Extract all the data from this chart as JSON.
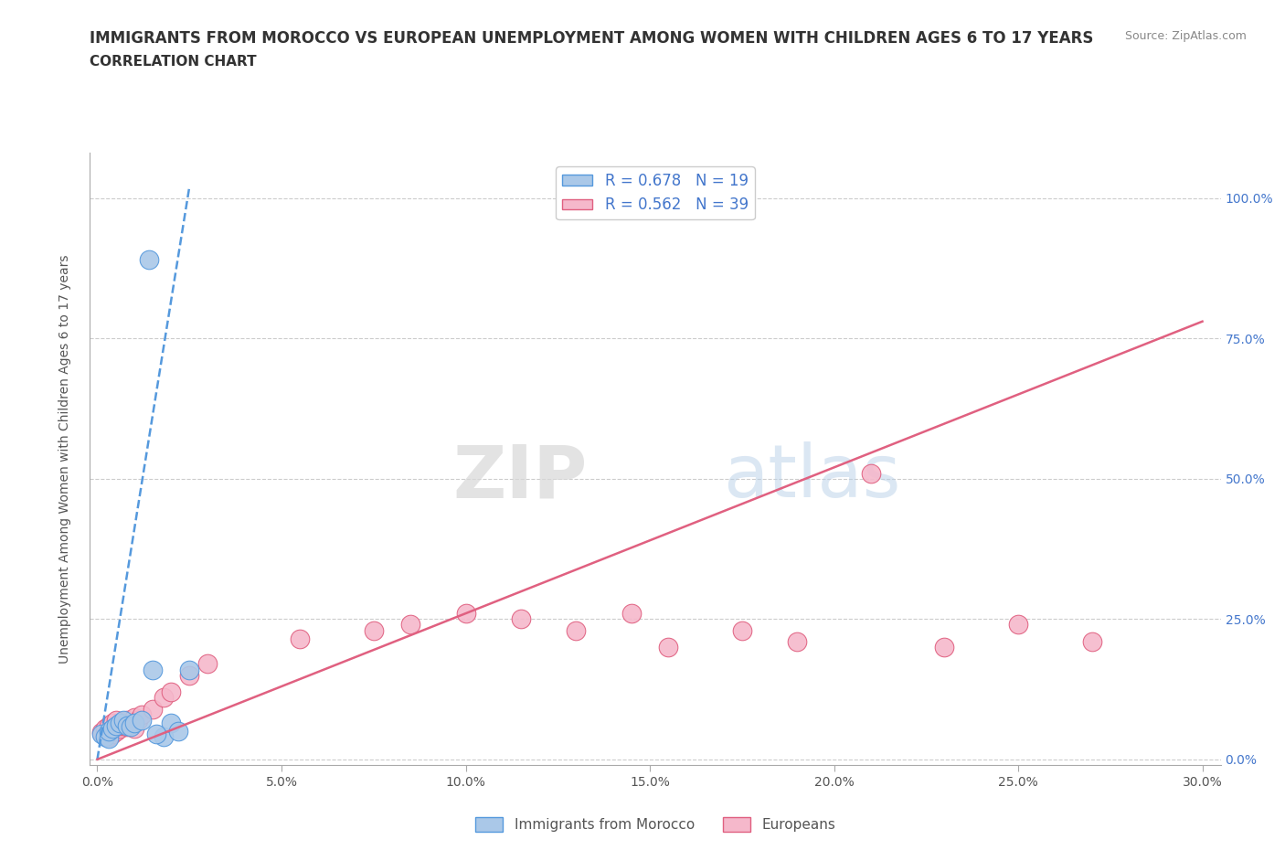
{
  "title": "IMMIGRANTS FROM MOROCCO VS EUROPEAN UNEMPLOYMENT AMONG WOMEN WITH CHILDREN AGES 6 TO 17 YEARS",
  "subtitle": "CORRELATION CHART",
  "source": "Source: ZipAtlas.com",
  "xlabel_ticks": [
    "0.0%",
    "5.0%",
    "10.0%",
    "15.0%",
    "20.0%",
    "25.0%",
    "30.0%"
  ],
  "xlabel_vals": [
    0.0,
    0.05,
    0.1,
    0.15,
    0.2,
    0.25,
    0.3
  ],
  "ylabel_ticks": [
    "0.0%",
    "25.0%",
    "50.0%",
    "75.0%",
    "100.0%"
  ],
  "ylabel_vals": [
    0.0,
    0.25,
    0.5,
    0.75,
    1.0
  ],
  "xlim": [
    -0.002,
    0.305
  ],
  "ylim": [
    -0.01,
    1.08
  ],
  "morocco_R": 0.678,
  "morocco_N": 19,
  "european_R": 0.562,
  "european_N": 39,
  "morocco_color": "#aac8e8",
  "european_color": "#f5b8cb",
  "morocco_line_color": "#5599dd",
  "european_line_color": "#e06080",
  "legend_text_color": "#4477cc",
  "watermark_zip": "ZIP",
  "watermark_atlas": "atlas",
  "morocco_x": [
    0.001,
    0.002,
    0.003,
    0.003,
    0.004,
    0.005,
    0.006,
    0.007,
    0.008,
    0.009,
    0.01,
    0.012,
    0.015,
    0.018,
    0.02,
    0.025,
    0.014,
    0.022,
    0.016
  ],
  "morocco_y": [
    0.045,
    0.04,
    0.038,
    0.05,
    0.055,
    0.06,
    0.065,
    0.07,
    0.06,
    0.058,
    0.065,
    0.07,
    0.16,
    0.04,
    0.065,
    0.16,
    0.89,
    0.05,
    0.045
  ],
  "european_x": [
    0.001,
    0.002,
    0.002,
    0.003,
    0.003,
    0.004,
    0.004,
    0.005,
    0.005,
    0.006,
    0.006,
    0.007,
    0.007,
    0.008,
    0.008,
    0.009,
    0.01,
    0.01,
    0.011,
    0.012,
    0.015,
    0.018,
    0.02,
    0.025,
    0.03,
    0.055,
    0.075,
    0.085,
    0.1,
    0.115,
    0.13,
    0.145,
    0.155,
    0.175,
    0.19,
    0.21,
    0.23,
    0.25,
    0.27
  ],
  "european_y": [
    0.048,
    0.042,
    0.055,
    0.04,
    0.06,
    0.045,
    0.065,
    0.05,
    0.07,
    0.055,
    0.06,
    0.06,
    0.065,
    0.058,
    0.07,
    0.063,
    0.055,
    0.075,
    0.07,
    0.08,
    0.09,
    0.11,
    0.12,
    0.15,
    0.17,
    0.215,
    0.23,
    0.24,
    0.26,
    0.25,
    0.23,
    0.26,
    0.2,
    0.23,
    0.21,
    0.51,
    0.2,
    0.24,
    0.21
  ],
  "morocco_line_x": [
    0.0,
    0.025
  ],
  "morocco_line_y": [
    0.0,
    1.02
  ],
  "european_line_x": [
    0.0,
    0.3
  ],
  "european_line_y": [
    0.0,
    0.78
  ]
}
